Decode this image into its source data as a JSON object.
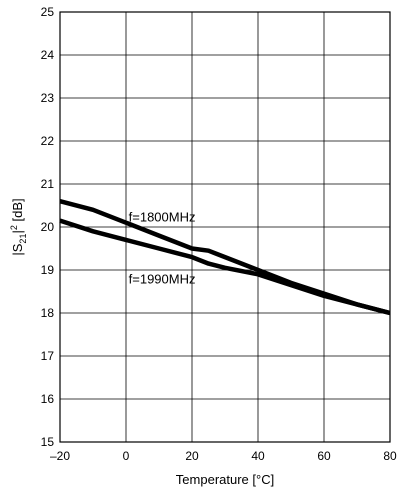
{
  "chart_data": {
    "type": "line",
    "title": "",
    "xlabel": "Temperature [°C]",
    "ylabel": {
      "prefix": "|S",
      "subscript": "21",
      "suffix_bar": "|",
      "superscript": "2",
      "suffix": " [dB]"
    },
    "xlim": [
      -20,
      80
    ],
    "ylim": [
      15,
      25
    ],
    "xticks": [
      -20,
      0,
      20,
      40,
      60,
      80
    ],
    "xtick_labels": [
      "–20",
      "0",
      "20",
      "40",
      "60",
      "80"
    ],
    "yticks": [
      15,
      16,
      17,
      18,
      19,
      20,
      21,
      22,
      23,
      24,
      25
    ],
    "ytick_labels": [
      "15",
      "16",
      "17",
      "18",
      "19",
      "20",
      "21",
      "22",
      "23",
      "24",
      "25"
    ],
    "grid": true,
    "legend": "none",
    "series": [
      {
        "name": "f=1800MHz",
        "x": [
          -20,
          -10,
          0,
          10,
          20,
          25,
          30,
          40,
          50,
          60,
          70,
          80
        ],
        "y": [
          20.6,
          20.4,
          20.1,
          19.8,
          19.5,
          19.45,
          19.3,
          19.0,
          18.7,
          18.45,
          18.2,
          18.0
        ]
      },
      {
        "name": "f=1990MHz",
        "x": [
          -20,
          -10,
          0,
          10,
          20,
          25,
          30,
          40,
          50,
          60,
          70,
          80
        ],
        "y": [
          20.15,
          19.9,
          19.7,
          19.5,
          19.3,
          19.15,
          19.05,
          18.9,
          18.65,
          18.4,
          18.2,
          18.0
        ]
      }
    ],
    "annotations": [
      {
        "text": "f=1800MHz",
        "series": 0,
        "x": 0.5,
        "y": 20.25
      },
      {
        "text": "f=1990MHz",
        "series": 1,
        "x": 0.5,
        "y": 18.8
      }
    ],
    "colors": {
      "line": "#000000",
      "grid": "#000000",
      "background": "#ffffff"
    }
  }
}
